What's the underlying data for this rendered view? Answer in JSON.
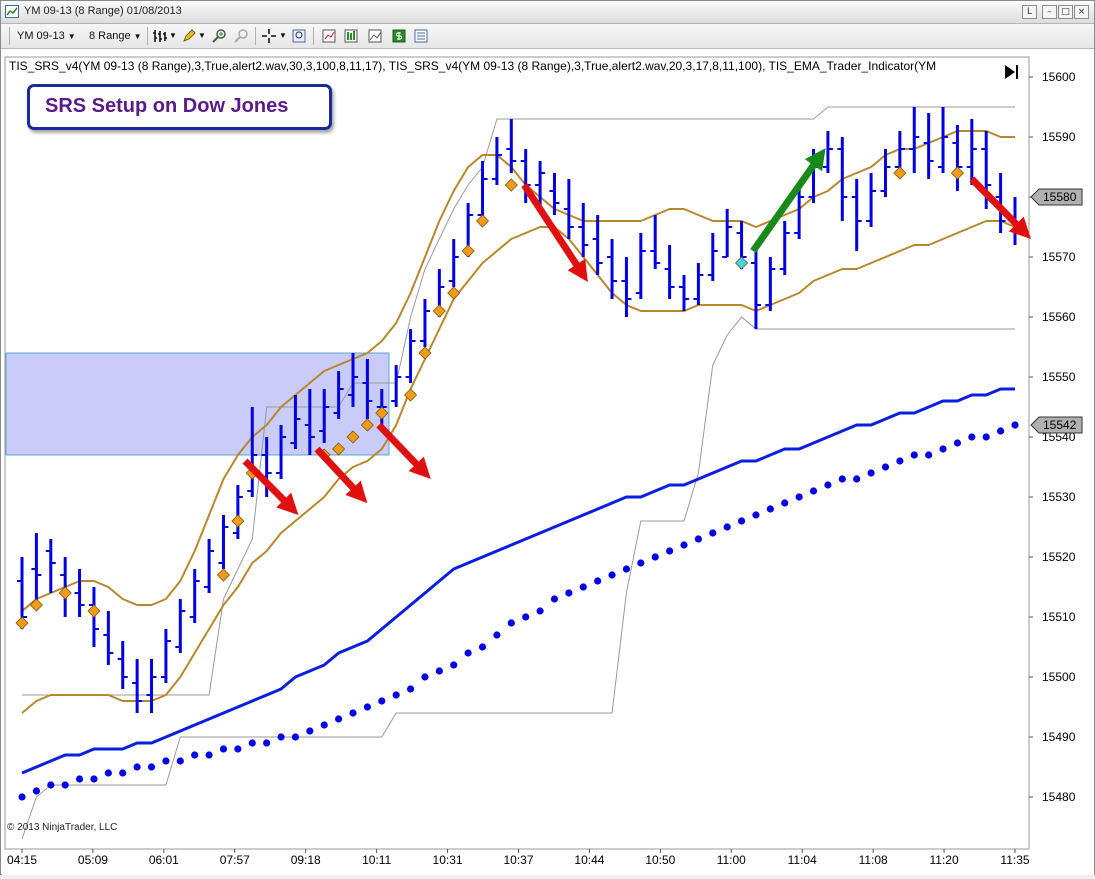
{
  "window": {
    "title": "YM 09-13 (8 Range)  01/08/2013"
  },
  "toolbar": {
    "instrument": "YM 09-13",
    "period": "8 Range"
  },
  "chart_info": {
    "indicator_line": "TIS_SRS_v4(YM 09-13 (8 Range),3,True,alert2.wav,30,3,100,8,11,17),  TIS_SRS_v4(YM 09-13 (8 Range),3,True,alert2.wav,20,3,17,8,11,100),  TIS_EMA_Trader_Indicator(YM",
    "copyright": "© 2013 NinjaTrader, LLC"
  },
  "callout": {
    "text": "SRS Setup on Dow Jones"
  },
  "colors": {
    "bars": "#0000e0",
    "envelope": "#b8862b",
    "ema_line": "#0a1ee0",
    "ema_dots": "#0000e8",
    "channel": "#9a9a9a",
    "diamond": "#f29a1a",
    "signal_diamond": "#3fd8e8",
    "arrow_short": "#e01010",
    "arrow_long": "#178a1a",
    "zone": "#c9ccf8"
  },
  "chart_data": {
    "type": "ohlc",
    "xlabel": "",
    "ylabel": "",
    "ylim": [
      15473,
      15604
    ],
    "y_ticks": [
      15480,
      15490,
      15500,
      15510,
      15520,
      15530,
      15540,
      15550,
      15560,
      15570,
      15580,
      15590,
      15600
    ],
    "price_markers": [
      15580,
      15542
    ],
    "x_ticks": [
      "04:15",
      "05:09",
      "06:01",
      "07:57",
      "09:18",
      "10:11",
      "10:31",
      "10:37",
      "10:44",
      "10:50",
      "11:00",
      "11:04",
      "11:08",
      "11:20",
      "11:35"
    ],
    "bars": [
      [
        15516,
        15520,
        15508,
        15510
      ],
      [
        15518,
        15524,
        15512,
        15517
      ],
      [
        15521,
        15523,
        15514,
        15519
      ],
      [
        15517,
        15520,
        15510,
        15514
      ],
      [
        15514,
        15518,
        15510,
        15512
      ],
      [
        15512,
        15515,
        15505,
        15508
      ],
      [
        15507,
        15511,
        15502,
        15504
      ],
      [
        15503,
        15506,
        15498,
        15500
      ],
      [
        15499,
        15503,
        15494,
        15496
      ],
      [
        15497,
        15503,
        15494,
        15500
      ],
      [
        15500,
        15508,
        15499,
        15506
      ],
      [
        15505,
        15513,
        15504,
        15511
      ],
      [
        15510,
        15518,
        15509,
        15516
      ],
      [
        15515,
        15523,
        15514,
        15521
      ],
      [
        15519,
        15527,
        15518,
        15525
      ],
      [
        15524,
        15532,
        15523,
        15530
      ],
      [
        15531,
        15545,
        15530,
        15537
      ],
      [
        15537,
        15540,
        15530,
        15534
      ],
      [
        15534,
        15542,
        15533,
        15540
      ],
      [
        15539,
        15547,
        15538,
        15543
      ],
      [
        15542,
        15548,
        15537,
        15540
      ],
      [
        15541,
        15548,
        15539,
        15545
      ],
      [
        15544,
        15551,
        15543,
        15548
      ],
      [
        15547,
        15554,
        15545,
        15550
      ],
      [
        15549,
        15553,
        15543,
        15546
      ],
      [
        15545,
        15548,
        15541,
        15545
      ],
      [
        15546,
        15552,
        15545,
        15550
      ],
      [
        15550,
        15558,
        15549,
        15556
      ],
      [
        15556,
        15563,
        15555,
        15561
      ],
      [
        15561,
        15568,
        15560,
        15565
      ],
      [
        15566,
        15573,
        15565,
        15570
      ],
      [
        15571,
        15579,
        15570,
        15577
      ],
      [
        15577,
        15586,
        15576,
        15583
      ],
      [
        15583,
        15590,
        15582,
        15587
      ],
      [
        15588,
        15593,
        15584,
        15586
      ],
      [
        15586,
        15588,
        15579,
        15582
      ],
      [
        15582,
        15586,
        15578,
        15584
      ],
      [
        15581,
        15584,
        15577,
        15579
      ],
      [
        15578,
        15583,
        15573,
        15575
      ],
      [
        15575,
        15579,
        15570,
        15572
      ],
      [
        15573,
        15577,
        15567,
        15569
      ],
      [
        15570,
        15573,
        15563,
        15566
      ],
      [
        15566,
        15570,
        15560,
        15563
      ],
      [
        15564,
        15574,
        15563,
        15571
      ],
      [
        15571,
        15577,
        15568,
        15569
      ],
      [
        15568,
        15572,
        15563,
        15565
      ],
      [
        15565,
        15567,
        15561,
        15563
      ],
      [
        15563,
        15569,
        15562,
        15567
      ],
      [
        15567,
        15574,
        15566,
        15571
      ],
      [
        15570,
        15578,
        15570,
        15575
      ],
      [
        15574,
        15576,
        15568,
        15570
      ],
      [
        15569,
        15572,
        15558,
        15562
      ],
      [
        15562,
        15570,
        15561,
        15568
      ],
      [
        15568,
        15576,
        15567,
        15574
      ],
      [
        15574,
        15582,
        15573,
        15580
      ],
      [
        15580,
        15588,
        15579,
        15585
      ],
      [
        15585,
        15591,
        15584,
        15588
      ],
      [
        15588,
        15590,
        15576,
        15580
      ],
      [
        15580,
        15583,
        15571,
        15576
      ],
      [
        15576,
        15584,
        15575,
        15581
      ],
      [
        15581,
        15588,
        15580,
        15585
      ],
      [
        15585,
        15591,
        15584,
        15588
      ],
      [
        15588,
        15595,
        15584,
        15590
      ],
      [
        15589,
        15594,
        15583,
        15586
      ],
      [
        15585,
        15595,
        15584,
        15590
      ],
      [
        15589,
        15592,
        15581,
        15585
      ],
      [
        15585,
        15593,
        15582,
        15588
      ],
      [
        15588,
        15591,
        15578,
        15582
      ],
      [
        15580,
        15584,
        15574,
        15576
      ],
      [
        15576,
        15580,
        15572,
        15574
      ]
    ],
    "series": [
      {
        "kind": "upper_band",
        "values": [
          15511,
          15513,
          15514,
          15515,
          15516,
          15516,
          15515,
          15513,
          15512,
          15512,
          15513,
          15516,
          15521,
          15527,
          15533,
          15537,
          15540,
          15542,
          15545,
          15547,
          15549,
          15551,
          15552,
          15553,
          15554,
          15556,
          15559,
          15564,
          15570,
          15576,
          15581,
          15585,
          15587,
          15587,
          15585,
          15582,
          15580,
          15578,
          15577,
          15576,
          15576,
          15576,
          15576,
          15576,
          15577,
          15578,
          15578,
          15577,
          15576,
          15576,
          15576,
          15575,
          15576,
          15577,
          15578,
          15580,
          15581,
          15583,
          15584,
          15585,
          15587,
          15588,
          15588,
          15589,
          15590,
          15591,
          15591,
          15591,
          15590,
          15590
        ]
      },
      {
        "kind": "lower_band",
        "values": [
          15494,
          15496,
          15497,
          15497,
          15497,
          15497,
          15497,
          15496,
          15496,
          15496,
          15497,
          15500,
          15504,
          15508,
          15512,
          15515,
          15519,
          15521,
          15524,
          15526,
          15528,
          15530,
          15533,
          15535,
          15536,
          15538,
          15542,
          15548,
          15553,
          15558,
          15563,
          15566,
          15569,
          15571,
          15573,
          15574,
          15575,
          15575,
          15573,
          15570,
          15567,
          15564,
          15562,
          15561,
          15561,
          15561,
          15561,
          15562,
          15562,
          15562,
          15562,
          15561,
          15562,
          15563,
          15564,
          15566,
          15567,
          15568,
          15568,
          15569,
          15570,
          15571,
          15572,
          15572,
          15573,
          15574,
          15575,
          15576,
          15576,
          15575
        ]
      },
      {
        "kind": "ema_line",
        "values": [
          15484,
          15485,
          15486,
          15487,
          15487,
          15488,
          15488,
          15488,
          15489,
          15489,
          15490,
          15491,
          15492,
          15493,
          15494,
          15495,
          15496,
          15497,
          15498,
          15500,
          15501,
          15502,
          15504,
          15505,
          15506,
          15508,
          15510,
          15512,
          15514,
          15516,
          15518,
          15519,
          15520,
          15521,
          15522,
          15523,
          15524,
          15525,
          15526,
          15527,
          15528,
          15529,
          15530,
          15530,
          15531,
          15532,
          15532,
          15533,
          15534,
          15535,
          15536,
          15536,
          15537,
          15538,
          15538,
          15539,
          15540,
          15541,
          15542,
          15542,
          15543,
          15544,
          15544,
          15545,
          15546,
          15546,
          15547,
          15547,
          15548,
          15548
        ]
      },
      {
        "kind": "ema_dots",
        "values": [
          15480,
          15481,
          15482,
          15482,
          15483,
          15483,
          15484,
          15484,
          15485,
          15485,
          15486,
          15486,
          15487,
          15487,
          15488,
          15488,
          15489,
          15489,
          15490,
          15490,
          15491,
          15492,
          15493,
          15494,
          15495,
          15496,
          15497,
          15498,
          15500,
          15501,
          15502,
          15504,
          15505,
          15507,
          15509,
          15510,
          15511,
          15513,
          15514,
          15515,
          15516,
          15517,
          15518,
          15519,
          15520,
          15521,
          15522,
          15523,
          15524,
          15525,
          15526,
          15527,
          15528,
          15529,
          15530,
          15531,
          15532,
          15533,
          15533,
          15534,
          15535,
          15536,
          15537,
          15537,
          15538,
          15539,
          15540,
          15540,
          15541,
          15542
        ]
      }
    ],
    "diamonds": [
      {
        "i": 0,
        "y": 15509
      },
      {
        "i": 1,
        "y": 15512
      },
      {
        "i": 3,
        "y": 15514
      },
      {
        "i": 5,
        "y": 15511
      },
      {
        "i": 14,
        "y": 15517
      },
      {
        "i": 15,
        "y": 15526
      },
      {
        "i": 16,
        "y": 15534
      },
      {
        "i": 21,
        "y": 15537
      },
      {
        "i": 22,
        "y": 15538
      },
      {
        "i": 23,
        "y": 15540
      },
      {
        "i": 24,
        "y": 15542
      },
      {
        "i": 25,
        "y": 15544
      },
      {
        "i": 27,
        "y": 15547
      },
      {
        "i": 28,
        "y": 15554
      },
      {
        "i": 29,
        "y": 15561
      },
      {
        "i": 30,
        "y": 15564
      },
      {
        "i": 31,
        "y": 15571
      },
      {
        "i": 32,
        "y": 15576
      },
      {
        "i": 34,
        "y": 15582
      },
      {
        "i": 61,
        "y": 15584
      },
      {
        "i": 65,
        "y": 15584
      }
    ],
    "signal_diamonds": [
      {
        "i": 50,
        "y": 15569
      }
    ],
    "channel_top": [
      15497,
      15497,
      15497,
      15497,
      15497,
      15497,
      15497,
      15497,
      15497,
      15497,
      15497,
      15497,
      15497,
      15497,
      15513,
      15518,
      15523,
      15545,
      15545,
      15545,
      15545,
      15545,
      15545,
      15549,
      15549,
      15549,
      15549,
      15560,
      15568,
      15573,
      15578,
      15582,
      15585,
      15593,
      15593,
      15593,
      15593,
      15593,
      15593,
      15593,
      15593,
      15593,
      15593,
      15593,
      15593,
      15593,
      15593,
      15593,
      15593,
      15593,
      15593,
      15593,
      15593,
      15593,
      15593,
      15593,
      15595,
      15595,
      15595,
      15595,
      15595,
      15595,
      15595,
      15595,
      15595,
      15595,
      15595,
      15595,
      15595,
      15595
    ],
    "channel_bottom": [
      15473,
      15480,
      15482,
      15482,
      15482,
      15482,
      15482,
      15482,
      15482,
      15482,
      15482,
      15490,
      15490,
      15490,
      15490,
      15490,
      15490,
      15490,
      15490,
      15490,
      15490,
      15490,
      15490,
      15490,
      15490,
      15490,
      15494,
      15494,
      15494,
      15494,
      15494,
      15494,
      15494,
      15494,
      15494,
      15494,
      15494,
      15494,
      15494,
      15494,
      15494,
      15494,
      15514,
      15526,
      15526,
      15526,
      15526,
      15534,
      15552,
      15557,
      15560,
      15558,
      15558,
      15558,
      15558,
      15558,
      15558,
      15558,
      15558,
      15558,
      15558,
      15558,
      15558,
      15558,
      15558,
      15558,
      15558,
      15558,
      15558,
      15558
    ],
    "zone": {
      "x_start": 0,
      "x_end": 25.5,
      "y_low": 15537,
      "y_high": 15554
    },
    "arrows": [
      {
        "dir": "down",
        "from": [
          15.5,
          15536
        ],
        "to": [
          18.8,
          15528
        ]
      },
      {
        "dir": "down",
        "from": [
          20.5,
          15538
        ],
        "to": [
          23.6,
          15530
        ]
      },
      {
        "dir": "down",
        "from": [
          24.8,
          15542
        ],
        "to": [
          28.0,
          15534
        ]
      },
      {
        "dir": "down",
        "from": [
          34.9,
          15582
        ],
        "to": [
          39.0,
          15567
        ]
      },
      {
        "dir": "up",
        "from": [
          50.8,
          15571
        ],
        "to": [
          55.5,
          15587
        ]
      },
      {
        "dir": "down",
        "from": [
          66.0,
          15583
        ],
        "to": [
          69.7,
          15574
        ]
      }
    ]
  }
}
